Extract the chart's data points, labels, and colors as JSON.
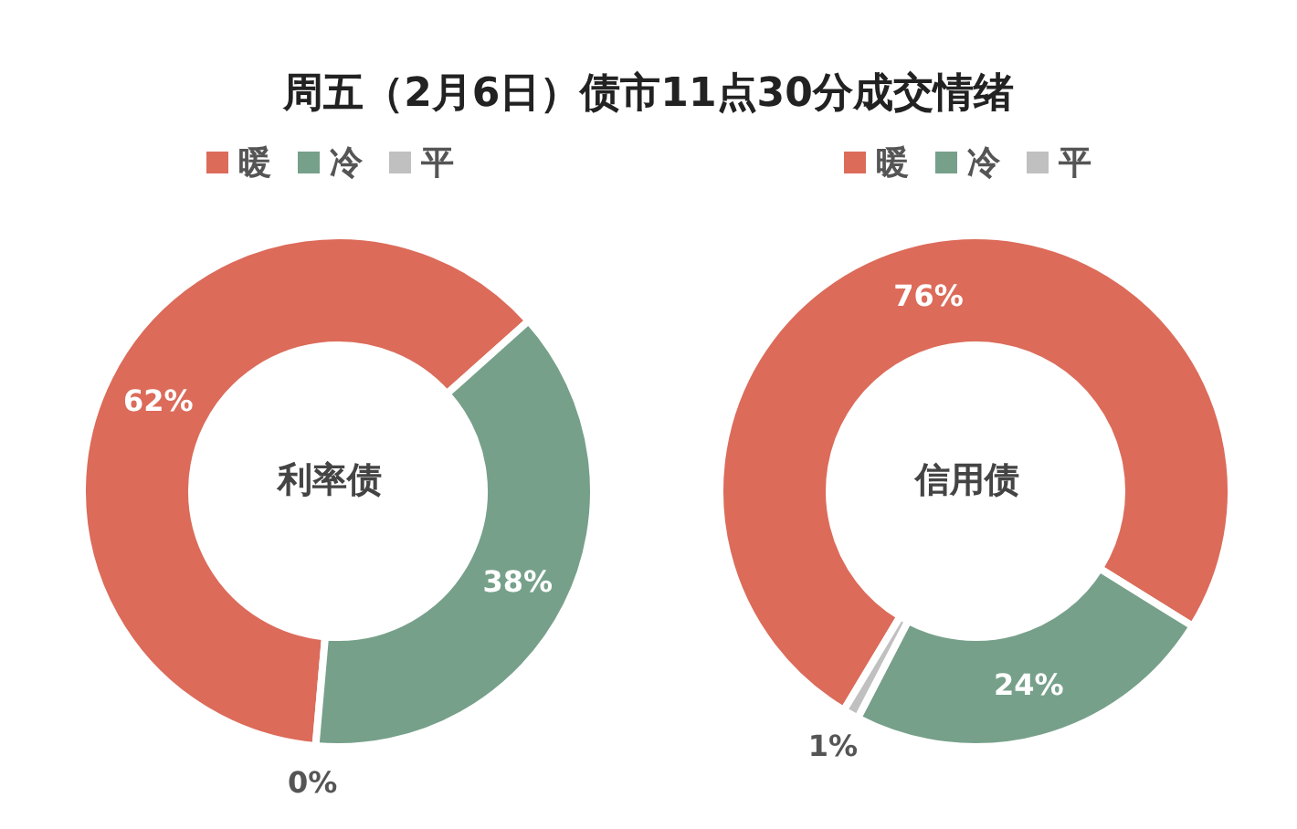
{
  "chart_data": [
    {
      "type": "donut",
      "title": "周五（2月6日）债市11点30分成交情绪",
      "categories": [
        "暖",
        "冷",
        "平"
      ],
      "values": [
        62,
        38,
        0
      ],
      "colors": [
        "#dc6b5a",
        "#76a08a",
        "#c0c0c0"
      ],
      "value_labels": [
        "62%",
        "38%",
        "0%"
      ],
      "legend": "top",
      "annotations": [
        "利率债"
      ]
    },
    {
      "type": "donut",
      "categories": [
        "暖",
        "冷",
        "平"
      ],
      "values": [
        76,
        24,
        1
      ],
      "colors": [
        "#dc6b5a",
        "#76a08a",
        "#c0c0c0"
      ],
      "value_labels": [
        "76%",
        "24%",
        "1%"
      ],
      "legend": "top",
      "annotations": [
        "信用债"
      ]
    }
  ]
}
